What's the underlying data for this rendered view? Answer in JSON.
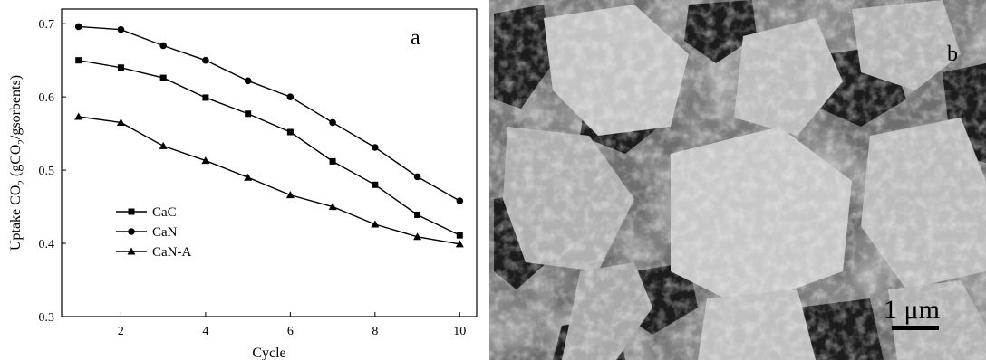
{
  "chart_data": {
    "type": "line",
    "panel_label": "a",
    "xlabel": "Cycle",
    "ylabel_parts": [
      "Uptake CO",
      "2",
      " (gCO",
      "2",
      "/gsorbents)"
    ],
    "xlim": [
      0.6,
      10.4
    ],
    "ylim": [
      0.3,
      0.72
    ],
    "xticks": [
      2,
      4,
      6,
      8,
      10
    ],
    "yticks": [
      0.3,
      0.4,
      0.5,
      0.6,
      0.7
    ],
    "ytick_labels": [
      "0.3",
      "0.4",
      "0.5",
      "0.6",
      "0.7"
    ],
    "grid": false,
    "legend_position": "lower-left",
    "x": [
      1,
      2,
      3,
      4,
      5,
      6,
      7,
      8,
      9,
      10
    ],
    "series": [
      {
        "name": "CaC",
        "marker": "square",
        "values": [
          0.65,
          0.64,
          0.626,
          0.599,
          0.577,
          0.552,
          0.512,
          0.48,
          0.439,
          0.411
        ]
      },
      {
        "name": "CaN",
        "marker": "circle",
        "values": [
          0.696,
          0.692,
          0.67,
          0.65,
          0.622,
          0.6,
          0.565,
          0.531,
          0.491,
          0.458
        ]
      },
      {
        "name": "CaN-A",
        "marker": "triangle",
        "values": [
          0.573,
          0.565,
          0.533,
          0.513,
          0.49,
          0.466,
          0.45,
          0.426,
          0.409,
          0.399
        ]
      }
    ]
  },
  "image_panel": {
    "panel_label": "b",
    "scale_bar_label": "1 μm",
    "image": "scanning electron micrograph of porous sorbent particles"
  }
}
